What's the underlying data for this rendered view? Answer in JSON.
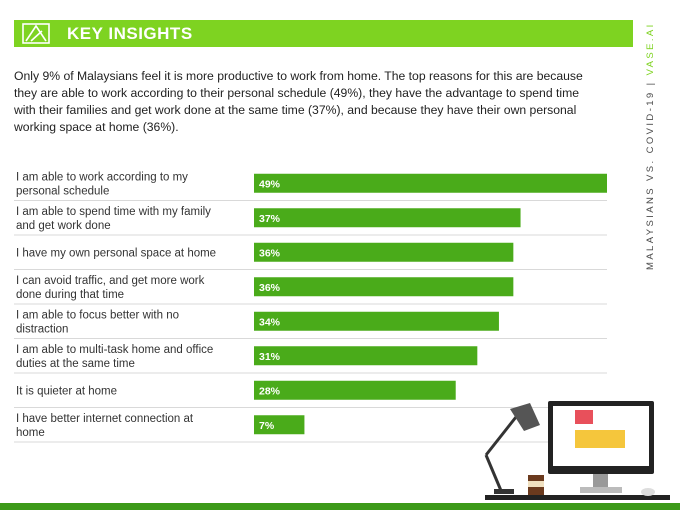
{
  "header": {
    "title": "KEY INSIGHTS"
  },
  "side_label": {
    "main": "MALAYSIANS VS. COVID-19 | ",
    "accent": "VASE.AI"
  },
  "intro": "Only 9% of Malaysians feel it is more productive to work from home. The top reasons for this are because they are able to work according to their personal schedule (49%), they have the advantage to spend time with their families and get work done at the same time (37%), and because they have their own personal working space at home (36%).",
  "colors": {
    "brand_green": "#7ed321",
    "bar_green": "#4aab1a",
    "dark_green": "#3d9a1a",
    "grid": "#d9d9d9"
  },
  "chart_data": {
    "type": "bar",
    "orientation": "horizontal",
    "categories": [
      "I am able to work according to my personal schedule",
      "I am able to spend time with my family and get work done",
      "I have my own personal space at home",
      "I can avoid traffic, and get more work done during that time",
      "I am able to focus better with no distraction",
      "I am able to multi-task home and office duties at the same time",
      "It is quieter at home",
      "I have better internet connection at home"
    ],
    "values": [
      49,
      37,
      36,
      36,
      34,
      31,
      28,
      7
    ],
    "value_labels": [
      "49%",
      "37%",
      "36%",
      "36%",
      "34%",
      "31%",
      "28%",
      "7%"
    ],
    "xlim": [
      0,
      49
    ]
  }
}
